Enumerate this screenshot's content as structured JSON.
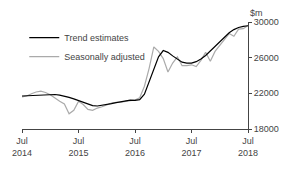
{
  "chart_data": {
    "type": "line",
    "categories": [
      "Jul\n2014",
      null,
      null,
      null,
      null,
      null,
      null,
      null,
      null,
      null,
      null,
      null,
      "Jul\n2015",
      null,
      null,
      null,
      null,
      null,
      null,
      null,
      null,
      null,
      null,
      null,
      "Jul\n2016",
      null,
      null,
      null,
      null,
      null,
      null,
      null,
      null,
      null,
      null,
      null,
      "Jul\n2017",
      null,
      null,
      null,
      null,
      null,
      null,
      null,
      null,
      null,
      null,
      null,
      "Jul\n2018"
    ],
    "series": [
      {
        "name": "Trend estimates",
        "color": "#000000",
        "values": [
          21700,
          21730,
          21760,
          21790,
          21820,
          21870,
          21910,
          21870,
          21800,
          21700,
          21550,
          21380,
          21200,
          20950,
          20750,
          20620,
          20580,
          20640,
          20730,
          20840,
          20960,
          21070,
          21170,
          21230,
          21210,
          21290,
          21900,
          23300,
          24900,
          26100,
          26800,
          26600,
          26200,
          25800,
          25500,
          25380,
          25380,
          25550,
          25850,
          26250,
          26750,
          27250,
          27800,
          28300,
          28800,
          29150,
          29380,
          29500,
          29580
        ]
      },
      {
        "name": "Seasonally adjusted",
        "color": "#aaaaaa",
        "values": [
          21600,
          21700,
          21950,
          22150,
          22250,
          22100,
          21850,
          21450,
          21100,
          20800,
          19700,
          20100,
          21100,
          20750,
          20200,
          20100,
          20350,
          20500,
          20700,
          20900,
          21000,
          21000,
          21100,
          21200,
          21250,
          21500,
          22800,
          24800,
          27200,
          26700,
          25900,
          24400,
          25400,
          26100,
          25100,
          25100,
          25200,
          25000,
          25700,
          26600,
          25600,
          26700,
          27400,
          28100,
          28700,
          28400,
          29200,
          29250,
          29600
        ]
      }
    ],
    "ylabel": "$m",
    "ylim": [
      18000,
      30000
    ],
    "yticks": [
      18000,
      22000,
      26000,
      30000
    ],
    "grid": false,
    "legend": "upper left"
  }
}
